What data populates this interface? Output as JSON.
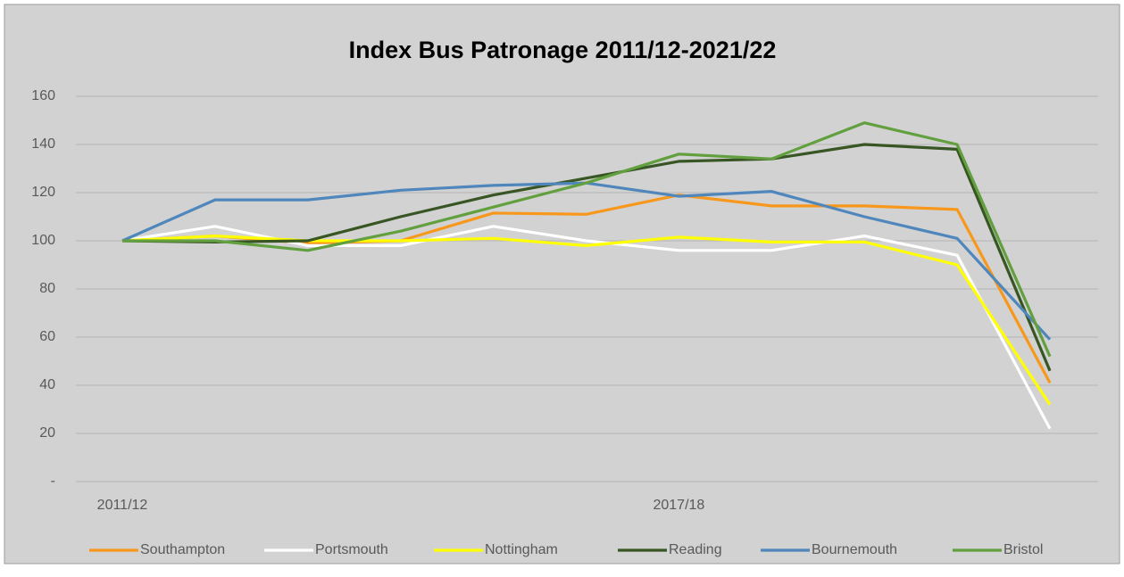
{
  "chart_data": {
    "type": "line",
    "title": "Index Bus Patronage 2011/12-2021/22",
    "categories": [
      "2011/12",
      null,
      null,
      null,
      null,
      null,
      "2017/18",
      null,
      null,
      null,
      null
    ],
    "series": [
      {
        "name": "Southampton",
        "color": "#f7981d",
        "values": [
          100,
          102,
          99,
          100,
          111.5,
          111,
          119,
          114.5,
          114.5,
          113,
          41
        ]
      },
      {
        "name": "Portsmouth",
        "color": "#ffffff",
        "values": [
          100,
          106,
          98,
          98,
          106,
          100,
          96,
          96,
          102,
          94,
          22
        ]
      },
      {
        "name": "Nottingham",
        "color": "#ffff00",
        "values": [
          100,
          102,
          100,
          100,
          101,
          98,
          101.5,
          99.5,
          99.5,
          90,
          32
        ]
      },
      {
        "name": "Reading",
        "color": "#375623",
        "values": [
          100,
          99.5,
          100,
          110,
          119,
          126,
          133,
          134,
          140,
          138,
          46
        ]
      },
      {
        "name": "Bournemouth",
        "color": "#4f87bd",
        "values": [
          100,
          117,
          117,
          121,
          123,
          124,
          118.5,
          120.5,
          110,
          101,
          59
        ]
      },
      {
        "name": "Bristol",
        "color": "#62a03f",
        "values": [
          100,
          100,
          96,
          104,
          114,
          124,
          136,
          134,
          149,
          140,
          52
        ]
      }
    ],
    "ylim": [
      0,
      160
    ],
    "yticks": [
      {
        "value": 0,
        "label": "-"
      },
      20,
      40,
      60,
      80,
      100,
      120,
      140,
      160
    ],
    "grid": true,
    "legend": "bottom"
  }
}
